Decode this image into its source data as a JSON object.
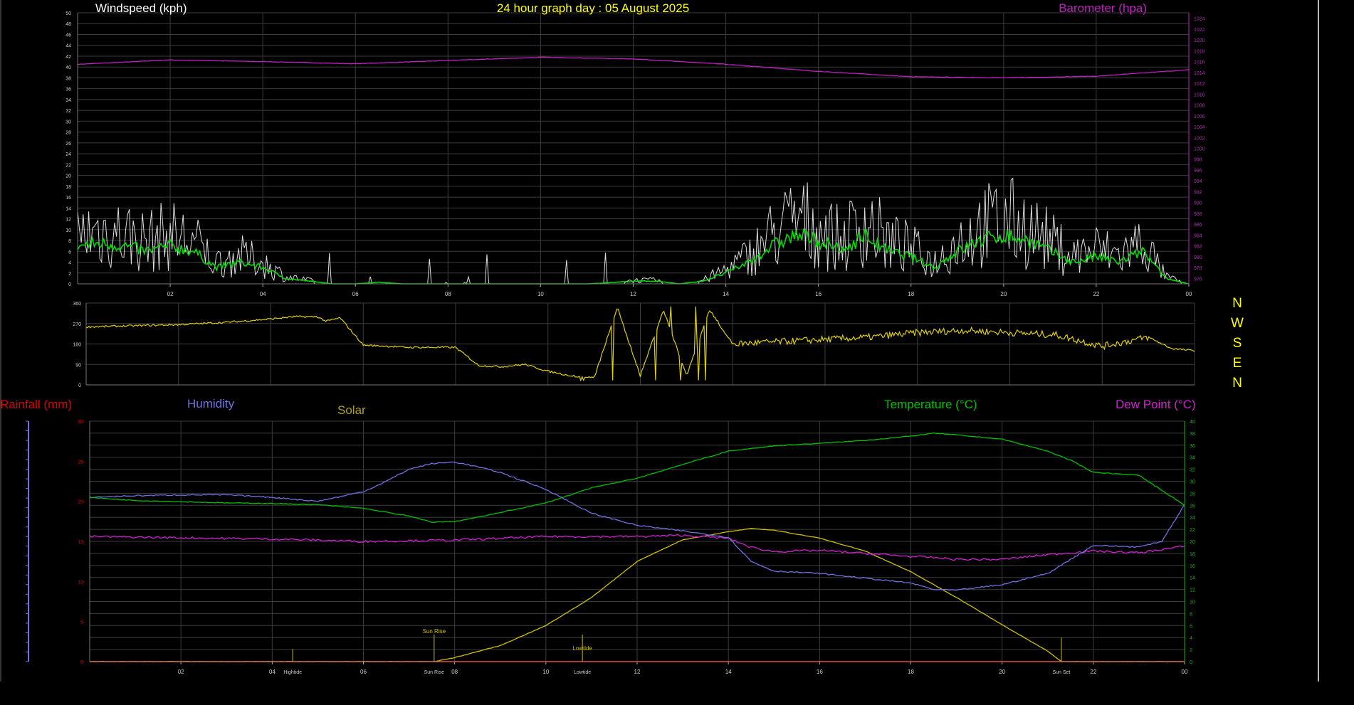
{
  "top": {
    "title": "24 hour graph day : 05 August 2025",
    "left_label": "Windspeed (kph)",
    "right_label": "Barometer (hpa)",
    "x_ticks": [
      "02",
      "04",
      "06",
      "08",
      "10",
      "12",
      "14",
      "16",
      "18",
      "20",
      "22",
      "00"
    ],
    "left_ticks": [
      "0",
      "2",
      "4",
      "6",
      "8",
      "10",
      "12",
      "14",
      "16",
      "18",
      "20",
      "22",
      "24",
      "26",
      "28",
      "30",
      "32",
      "34",
      "36",
      "38",
      "40",
      "42",
      "44",
      "46",
      "48",
      "50"
    ],
    "right_ticks": [
      "976",
      "978",
      "980",
      "982",
      "984",
      "986",
      "988",
      "990",
      "992",
      "994",
      "996",
      "998",
      "1000",
      "1002",
      "1004",
      "1006",
      "1008",
      "1010",
      "1012",
      "1014",
      "1016",
      "1018",
      "1020",
      "1022",
      "1024"
    ]
  },
  "direction": {
    "y_ticks": [
      "0",
      "90",
      "180",
      "270",
      "360"
    ],
    "compass": [
      "N",
      "W",
      "S",
      "E",
      "N"
    ]
  },
  "bottom": {
    "rain_label": "Rainfall (mm)",
    "humidity_label": "Humidity",
    "solar_label": "Solar",
    "temp_label": "Temperature (°C)",
    "dew_label": "Dew Point (°C)",
    "x_ticks": [
      "02",
      "04",
      "06",
      "08",
      "10",
      "12",
      "14",
      "16",
      "18",
      "20",
      "22",
      "00"
    ],
    "left_ticks": [
      "0",
      "5",
      "10",
      "15",
      "20",
      "25",
      "30"
    ],
    "right_ticks": [
      "0",
      "2",
      "4",
      "6",
      "8",
      "10",
      "12",
      "14",
      "16",
      "18",
      "20",
      "22",
      "24",
      "26",
      "28",
      "30",
      "32",
      "34",
      "36",
      "38",
      "40"
    ],
    "markers": [
      {
        "label": "Sun Rise",
        "hour": 7.55,
        "pos": "top"
      },
      {
        "label": "Sun Rise",
        "hour": 7.55,
        "pos": "axis"
      },
      {
        "label": "Hightide",
        "hour": 4.45,
        "pos": "axis"
      },
      {
        "label": "Lowtide",
        "hour": 10.8,
        "pos": "top"
      },
      {
        "label": "Lowtide",
        "hour": 10.8,
        "pos": "axis"
      },
      {
        "label": "Sun Set",
        "hour": 21.3,
        "pos": "axis"
      }
    ]
  },
  "colors": {
    "grid": "#3c3c3c",
    "axis": "#777777",
    "gust": "#dddddd",
    "wind_avg": "#00dd00",
    "pressure": "#c020c0",
    "direction": "#e0d000",
    "humidity": "#7070e0",
    "temperature": "#00c000",
    "dew": "#d020d0",
    "solar": "#d0c000",
    "rain": "#e00000",
    "title": "#ffff00",
    "white": "#ffffff"
  },
  "chart_data": [
    {
      "type": "line",
      "xlim": [
        0,
        24
      ],
      "ylim": [
        0,
        50
      ],
      "y2lim": [
        975,
        1025
      ],
      "series": [
        {
          "name": "Barometer (hpa)",
          "axis": "right",
          "x": [
            0,
            2,
            4,
            6,
            8,
            10,
            12,
            14,
            16,
            18,
            20,
            22,
            24
          ],
          "values": [
            1015.5,
            1016.3,
            1016.0,
            1015.6,
            1016.2,
            1016.8,
            1016.5,
            1015.5,
            1014.2,
            1013.2,
            1013.0,
            1013.3,
            1014.5
          ]
        },
        {
          "name": "Windspeed (kph)",
          "axis": "left",
          "x": [
            0,
            0.5,
            1,
            1.5,
            2,
            2.5,
            3,
            3.5,
            4,
            4.5,
            5,
            5.5,
            6,
            6.5,
            7,
            8,
            9,
            10,
            11,
            11.5,
            12,
            12.5,
            13,
            13.5,
            14,
            14.5,
            15,
            15.5,
            16,
            16.5,
            17,
            17.5,
            18,
            18.5,
            19,
            19.5,
            20,
            20.5,
            21,
            21.5,
            22,
            22.5,
            23,
            23.5,
            24
          ],
          "values": [
            7,
            7.5,
            7,
            6,
            7,
            6,
            3,
            4,
            3,
            1,
            0.5,
            0,
            0,
            0.3,
            0,
            0,
            0,
            0,
            0,
            0.2,
            0.5,
            0.5,
            0,
            0.5,
            2,
            4,
            7,
            9,
            8,
            6,
            9,
            6,
            5,
            3,
            6,
            8,
            9,
            8,
            6,
            4,
            5,
            4,
            6,
            1,
            0
          ]
        }
      ]
    },
    {
      "type": "line",
      "xlim": [
        0,
        24
      ],
      "ylim": [
        0,
        360
      ],
      "series": [
        {
          "name": "Wind Direction",
          "x": [
            0,
            1,
            2,
            3,
            4,
            4.5,
            5,
            5.2,
            5.5,
            6,
            6.5,
            7,
            7.5,
            8,
            8.5,
            9,
            9.5,
            10,
            10.5,
            11,
            11.5,
            12,
            12.5,
            13,
            13.5,
            14,
            15,
            16,
            17,
            18,
            19,
            20,
            21,
            22,
            23,
            23.5,
            24
          ],
          "values": [
            255,
            260,
            265,
            275,
            290,
            300,
            300,
            280,
            295,
            175,
            170,
            165,
            165,
            165,
            85,
            80,
            90,
            60,
            40,
            30,
            340,
            40,
            330,
            40,
            330,
            180,
            190,
            200,
            210,
            230,
            240,
            230,
            220,
            170,
            210,
            160,
            150
          ]
        }
      ]
    },
    {
      "type": "line",
      "xlim": [
        0,
        24
      ],
      "ylim": [
        0,
        30
      ],
      "y2lim": [
        0,
        40
      ],
      "series": [
        {
          "name": "Humidity",
          "axis": "left",
          "x": [
            0,
            1,
            2,
            3,
            4,
            5,
            6,
            6.5,
            7,
            7.5,
            8,
            8.5,
            9,
            10,
            11,
            12,
            13,
            14,
            14.5,
            15,
            16,
            17,
            18,
            18.5,
            19,
            20,
            21,
            22,
            23,
            23.5,
            24
          ],
          "values": [
            20.5,
            20.7,
            20.8,
            20.8,
            20.5,
            20.0,
            21.2,
            22.5,
            24.0,
            24.7,
            24.9,
            24.3,
            23.6,
            21.5,
            18.5,
            17.0,
            16.3,
            15.5,
            12.5,
            11.3,
            11.0,
            10.4,
            9.8,
            9.0,
            8.9,
            9.6,
            11.0,
            14.5,
            14.3,
            15.0,
            19.6
          ]
        },
        {
          "name": "Temperature (°C)",
          "axis": "right",
          "x": [
            0,
            1,
            2,
            3,
            4,
            5,
            6,
            7,
            7.5,
            8,
            8.5,
            9,
            10,
            11,
            12,
            13,
            14,
            15,
            16,
            17,
            18,
            18.5,
            19,
            20,
            21,
            21.5,
            22,
            23,
            23.5,
            24
          ],
          "values": [
            27.3,
            26.8,
            26.6,
            26.4,
            26.3,
            26.1,
            25.5,
            24.2,
            23.2,
            23.3,
            24.0,
            24.8,
            26.4,
            28.9,
            30.5,
            32.8,
            35.0,
            35.9,
            36.3,
            36.8,
            37.5,
            38.0,
            37.7,
            37.0,
            35.0,
            33.5,
            31.5,
            31.0,
            28.5,
            26.0
          ]
        },
        {
          "name": "Dew Point (°C)",
          "axis": "right",
          "x": [
            0,
            2,
            4,
            6,
            8,
            10,
            12,
            13,
            14,
            14.5,
            15,
            16,
            17,
            18,
            18.5,
            19,
            20,
            21,
            22,
            23,
            24
          ],
          "values": [
            20.8,
            20.6,
            20.4,
            20.0,
            20.2,
            20.8,
            20.8,
            21.0,
            20.5,
            19.0,
            18.3,
            18.5,
            18.0,
            17.5,
            17.3,
            17.0,
            17.0,
            17.8,
            18.4,
            18.1,
            19.2
          ]
        },
        {
          "name": "Solar",
          "axis": "left",
          "x": [
            0,
            7.55,
            8,
            9,
            10,
            11,
            12,
            13,
            14,
            14.5,
            15,
            16,
            17,
            18,
            19,
            20,
            21,
            21.3,
            22,
            24
          ],
          "values": [
            0,
            0,
            0.5,
            2.0,
            4.5,
            8.0,
            12.5,
            15.2,
            16.2,
            16.6,
            16.4,
            15.4,
            13.8,
            11.2,
            8.0,
            4.6,
            1.3,
            0,
            0,
            0
          ]
        },
        {
          "name": "Rainfall (mm)",
          "axis": "left",
          "x": [
            0,
            24
          ],
          "values": [
            0,
            0
          ]
        }
      ]
    }
  ]
}
